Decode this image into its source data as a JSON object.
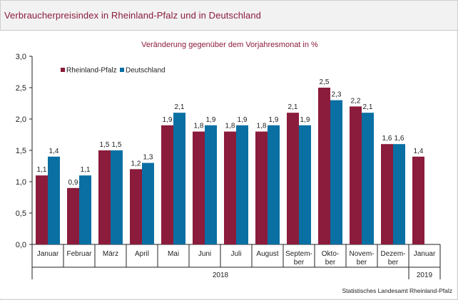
{
  "title": "Verbraucherpreisindex in Rheinland-Pfalz und in Deutschland",
  "source": "Statistisches Landesamt Rheinland-Pfalz",
  "chart_data": {
    "type": "bar",
    "subtitle": "Veränderung  gegenüber dem Vorjahresmonat in %",
    "categories": [
      "Januar",
      "Februar",
      "März",
      "April",
      "Mai",
      "Juni",
      "Juli",
      "August",
      "Septem-\nber",
      "Okto-\nber",
      "Novem-\nber",
      "Dezem-\nber",
      "Januar"
    ],
    "years": [
      {
        "label": "2018",
        "from": 0,
        "to": 11
      },
      {
        "label": "2019",
        "from": 12,
        "to": 12
      }
    ],
    "series": [
      {
        "name": "Rheinland-Pfalz",
        "color": "#8b1c3b",
        "values": [
          1.1,
          0.9,
          1.5,
          1.2,
          1.9,
          1.8,
          1.8,
          1.8,
          2.1,
          2.5,
          2.2,
          1.6,
          1.4
        ]
      },
      {
        "name": "Deutschland",
        "color": "#0a6fa3",
        "values": [
          1.4,
          1.1,
          1.5,
          1.3,
          2.1,
          1.9,
          1.9,
          1.9,
          1.9,
          2.3,
          2.1,
          1.6,
          null
        ]
      }
    ],
    "ylim": [
      0,
      3
    ],
    "yticks": [
      "0,0",
      "0,5",
      "1,0",
      "1,5",
      "2,0",
      "2,5",
      "3,0"
    ],
    "ytick_values": [
      0,
      0.5,
      1,
      1.5,
      2,
      2.5,
      3
    ],
    "legend": "top-left",
    "grid": false
  }
}
